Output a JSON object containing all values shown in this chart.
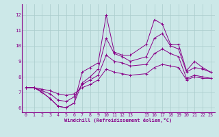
{
  "xlabel": "Windchill (Refroidissement éolien,°C)",
  "bg_color": "#cce8e8",
  "grid_color": "#aacccc",
  "line_color": "#880088",
  "xlim": [
    -0.5,
    23.5
  ],
  "ylim": [
    5.7,
    12.7
  ],
  "yticks": [
    6,
    7,
    8,
    9,
    10,
    11,
    12
  ],
  "xticks": [
    0,
    1,
    2,
    3,
    4,
    5,
    6,
    7,
    8,
    9,
    10,
    11,
    12,
    13,
    15,
    16,
    17,
    18,
    19,
    20,
    21,
    22,
    23
  ],
  "series": [
    [
      7.3,
      7.3,
      7.0,
      6.6,
      6.1,
      6.0,
      6.3,
      8.3,
      8.6,
      8.9,
      12.0,
      9.6,
      9.4,
      9.4,
      10.1,
      11.7,
      11.4,
      10.1,
      10.1,
      8.4,
      9.0,
      8.6,
      8.3
    ],
    [
      7.3,
      7.3,
      7.0,
      6.6,
      6.1,
      6.0,
      6.3,
      7.6,
      8.0,
      8.5,
      10.5,
      9.5,
      9.3,
      9.0,
      9.3,
      10.5,
      10.8,
      10.0,
      9.8,
      8.3,
      8.6,
      8.5,
      8.3
    ],
    [
      7.3,
      7.3,
      7.1,
      6.9,
      6.5,
      6.4,
      6.7,
      7.5,
      7.8,
      8.1,
      9.4,
      9.0,
      8.9,
      8.7,
      8.8,
      9.5,
      9.8,
      9.5,
      9.3,
      7.9,
      8.1,
      8.0,
      7.9
    ],
    [
      7.3,
      7.3,
      7.2,
      7.1,
      6.9,
      6.8,
      6.9,
      7.3,
      7.5,
      7.8,
      8.5,
      8.3,
      8.2,
      8.1,
      8.2,
      8.6,
      8.8,
      8.7,
      8.6,
      7.8,
      8.0,
      7.9,
      7.9
    ]
  ],
  "xdata": [
    0,
    1,
    2,
    3,
    4,
    5,
    6,
    7,
    8,
    9,
    10,
    11,
    12,
    13,
    15,
    16,
    17,
    18,
    19,
    20,
    21,
    22,
    23
  ],
  "xlabel_fontsize": 5.0,
  "tick_fontsize": 4.8
}
